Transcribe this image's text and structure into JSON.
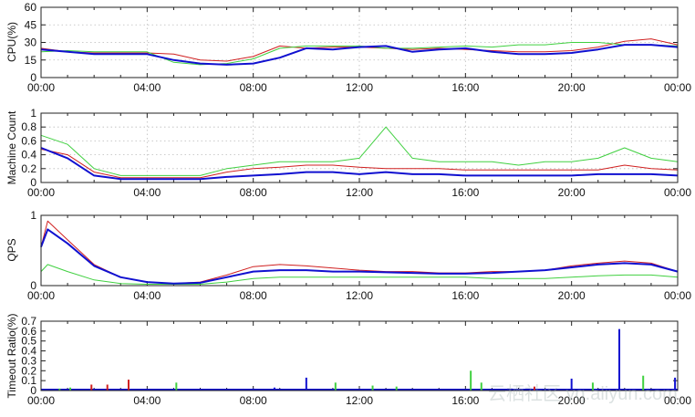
{
  "chart_data": [
    {
      "type": "line",
      "ylabel": "CPU(%)",
      "ylim": [
        0,
        60
      ],
      "yticks": [
        "0",
        "15",
        "30",
        "45",
        "60"
      ],
      "xticks": [
        "00:00",
        "04:00",
        "08:00",
        "12:00",
        "16:00",
        "20:00",
        "00:00"
      ],
      "xlim_hours": [
        0,
        24
      ],
      "grid": true,
      "x": [
        0,
        1,
        2,
        3,
        4,
        5,
        6,
        7,
        8,
        9,
        10,
        11,
        12,
        13,
        14,
        15,
        16,
        17,
        18,
        19,
        20,
        21,
        22,
        23,
        24
      ],
      "series": [
        {
          "name": "red",
          "color": "#d02020",
          "width": 1,
          "values": [
            25,
            22,
            21,
            21,
            21,
            20,
            15,
            14,
            18,
            27,
            25,
            26,
            26,
            25,
            24,
            25,
            24,
            23,
            22,
            22,
            23,
            26,
            31,
            33,
            28
          ]
        },
        {
          "name": "green",
          "color": "#40d040",
          "width": 1,
          "values": [
            22,
            23,
            22,
            22,
            22,
            13,
            11,
            12,
            16,
            25,
            27,
            27,
            27,
            25,
            25,
            26,
            27,
            26,
            28,
            28,
            30,
            30,
            28,
            28,
            27
          ]
        },
        {
          "name": "blue",
          "color": "#1010d0",
          "width": 2,
          "values": [
            24,
            22,
            20,
            20,
            20,
            15,
            12,
            11,
            12,
            17,
            25,
            24,
            26,
            27,
            22,
            24,
            25,
            22,
            20,
            20,
            21,
            24,
            28,
            28,
            26
          ]
        }
      ]
    },
    {
      "type": "line",
      "ylabel": "Machine Count",
      "ylim": [
        0,
        1
      ],
      "yticks": [
        "0",
        "0.2",
        "0.4",
        "0.6",
        "0.8",
        "1"
      ],
      "xticks": [
        "00:00",
        "04:00",
        "08:00",
        "12:00",
        "16:00",
        "20:00",
        "00:00"
      ],
      "xlim_hours": [
        0,
        24
      ],
      "grid": true,
      "x": [
        0,
        1,
        2,
        3,
        4,
        5,
        6,
        7,
        8,
        9,
        10,
        11,
        12,
        13,
        14,
        15,
        16,
        17,
        18,
        19,
        20,
        21,
        22,
        23,
        24
      ],
      "series": [
        {
          "name": "green",
          "color": "#40d040",
          "width": 1,
          "values": [
            0.68,
            0.55,
            0.2,
            0.1,
            0.1,
            0.1,
            0.1,
            0.2,
            0.25,
            0.3,
            0.3,
            0.3,
            0.35,
            0.8,
            0.35,
            0.3,
            0.3,
            0.3,
            0.25,
            0.3,
            0.3,
            0.35,
            0.5,
            0.35,
            0.3
          ]
        },
        {
          "name": "red",
          "color": "#d02020",
          "width": 1,
          "values": [
            0.48,
            0.4,
            0.15,
            0.07,
            0.07,
            0.07,
            0.07,
            0.15,
            0.2,
            0.22,
            0.25,
            0.25,
            0.22,
            0.2,
            0.2,
            0.2,
            0.18,
            0.18,
            0.18,
            0.18,
            0.18,
            0.18,
            0.25,
            0.2,
            0.18
          ]
        },
        {
          "name": "blue",
          "color": "#1010d0",
          "width": 2,
          "values": [
            0.5,
            0.35,
            0.1,
            0.05,
            0.05,
            0.05,
            0.05,
            0.08,
            0.1,
            0.12,
            0.15,
            0.15,
            0.12,
            0.15,
            0.12,
            0.12,
            0.1,
            0.1,
            0.1,
            0.1,
            0.1,
            0.12,
            0.12,
            0.12,
            0.1
          ]
        }
      ]
    },
    {
      "type": "line",
      "ylabel": "QPS",
      "ylim": [
        0,
        1
      ],
      "yticks": [
        "0",
        "1"
      ],
      "xticks": [
        "00:00",
        "04:00",
        "08:00",
        "12:00",
        "16:00",
        "20:00",
        "00:00"
      ],
      "xlim_hours": [
        0,
        24
      ],
      "grid": false,
      "x": [
        0,
        0.25,
        1,
        2,
        3,
        4,
        5,
        6,
        7,
        8,
        9,
        10,
        11,
        12,
        13,
        14,
        15,
        16,
        17,
        18,
        19,
        20,
        21,
        22,
        23,
        24
      ],
      "series": [
        {
          "name": "green",
          "color": "#40d040",
          "width": 1,
          "values": [
            0.2,
            0.3,
            0.2,
            0.08,
            0.03,
            0.02,
            0.02,
            0.02,
            0.05,
            0.1,
            0.12,
            0.12,
            0.12,
            0.12,
            0.12,
            0.12,
            0.12,
            0.12,
            0.1,
            0.1,
            0.1,
            0.12,
            0.14,
            0.15,
            0.15,
            0.12
          ]
        },
        {
          "name": "red",
          "color": "#d02020",
          "width": 1,
          "values": [
            0.55,
            0.92,
            0.65,
            0.3,
            0.12,
            0.05,
            0.03,
            0.05,
            0.15,
            0.27,
            0.3,
            0.28,
            0.25,
            0.22,
            0.2,
            0.2,
            0.18,
            0.18,
            0.2,
            0.2,
            0.22,
            0.28,
            0.32,
            0.35,
            0.32,
            0.2
          ]
        },
        {
          "name": "blue",
          "color": "#1010d0",
          "width": 2,
          "values": [
            0.55,
            0.8,
            0.6,
            0.28,
            0.12,
            0.05,
            0.03,
            0.04,
            0.12,
            0.2,
            0.22,
            0.22,
            0.2,
            0.2,
            0.19,
            0.18,
            0.17,
            0.17,
            0.18,
            0.2,
            0.22,
            0.26,
            0.3,
            0.32,
            0.3,
            0.2
          ]
        }
      ]
    },
    {
      "type": "bar",
      "ylabel": "Timeout Ratio(%)",
      "ylim": [
        0,
        0.7
      ],
      "yticks": [
        "0",
        "0.1",
        "0.2",
        "0.3",
        "0.4",
        "0.5",
        "0.6",
        "0.7"
      ],
      "xticks": [
        "00:00",
        "04:00",
        "08:00",
        "12:00",
        "16:00",
        "20:00",
        "00:00"
      ],
      "xlim_hours": [
        0,
        24
      ],
      "grid": false,
      "spikes": [
        {
          "x": 0.7,
          "y": 0.02,
          "color": "#40d040"
        },
        {
          "x": 1.1,
          "y": 0.03,
          "color": "#40d040"
        },
        {
          "x": 1.9,
          "y": 0.06,
          "color": "#d02020"
        },
        {
          "x": 2.5,
          "y": 0.06,
          "color": "#d02020"
        },
        {
          "x": 3.3,
          "y": 0.11,
          "color": "#d02020"
        },
        {
          "x": 5.1,
          "y": 0.08,
          "color": "#40d040"
        },
        {
          "x": 8.0,
          "y": 0.02,
          "color": "#1010d0"
        },
        {
          "x": 8.8,
          "y": 0.03,
          "color": "#1010d0"
        },
        {
          "x": 10.0,
          "y": 0.13,
          "color": "#1010d0"
        },
        {
          "x": 11.1,
          "y": 0.08,
          "color": "#40d040"
        },
        {
          "x": 12.5,
          "y": 0.05,
          "color": "#40d040"
        },
        {
          "x": 13.4,
          "y": 0.04,
          "color": "#40d040"
        },
        {
          "x": 16.2,
          "y": 0.2,
          "color": "#40d040"
        },
        {
          "x": 16.6,
          "y": 0.08,
          "color": "#40d040"
        },
        {
          "x": 18.6,
          "y": 0.04,
          "color": "#d02020"
        },
        {
          "x": 20.0,
          "y": 0.12,
          "color": "#1010d0"
        },
        {
          "x": 20.8,
          "y": 0.08,
          "color": "#40d040"
        },
        {
          "x": 21.8,
          "y": 0.62,
          "color": "#1010d0"
        },
        {
          "x": 22.7,
          "y": 0.15,
          "color": "#40d040"
        },
        {
          "x": 23.9,
          "y": 0.13,
          "color": "#1010d0"
        }
      ]
    }
  ],
  "watermark": "云栖社区 yq.aliyun.com"
}
